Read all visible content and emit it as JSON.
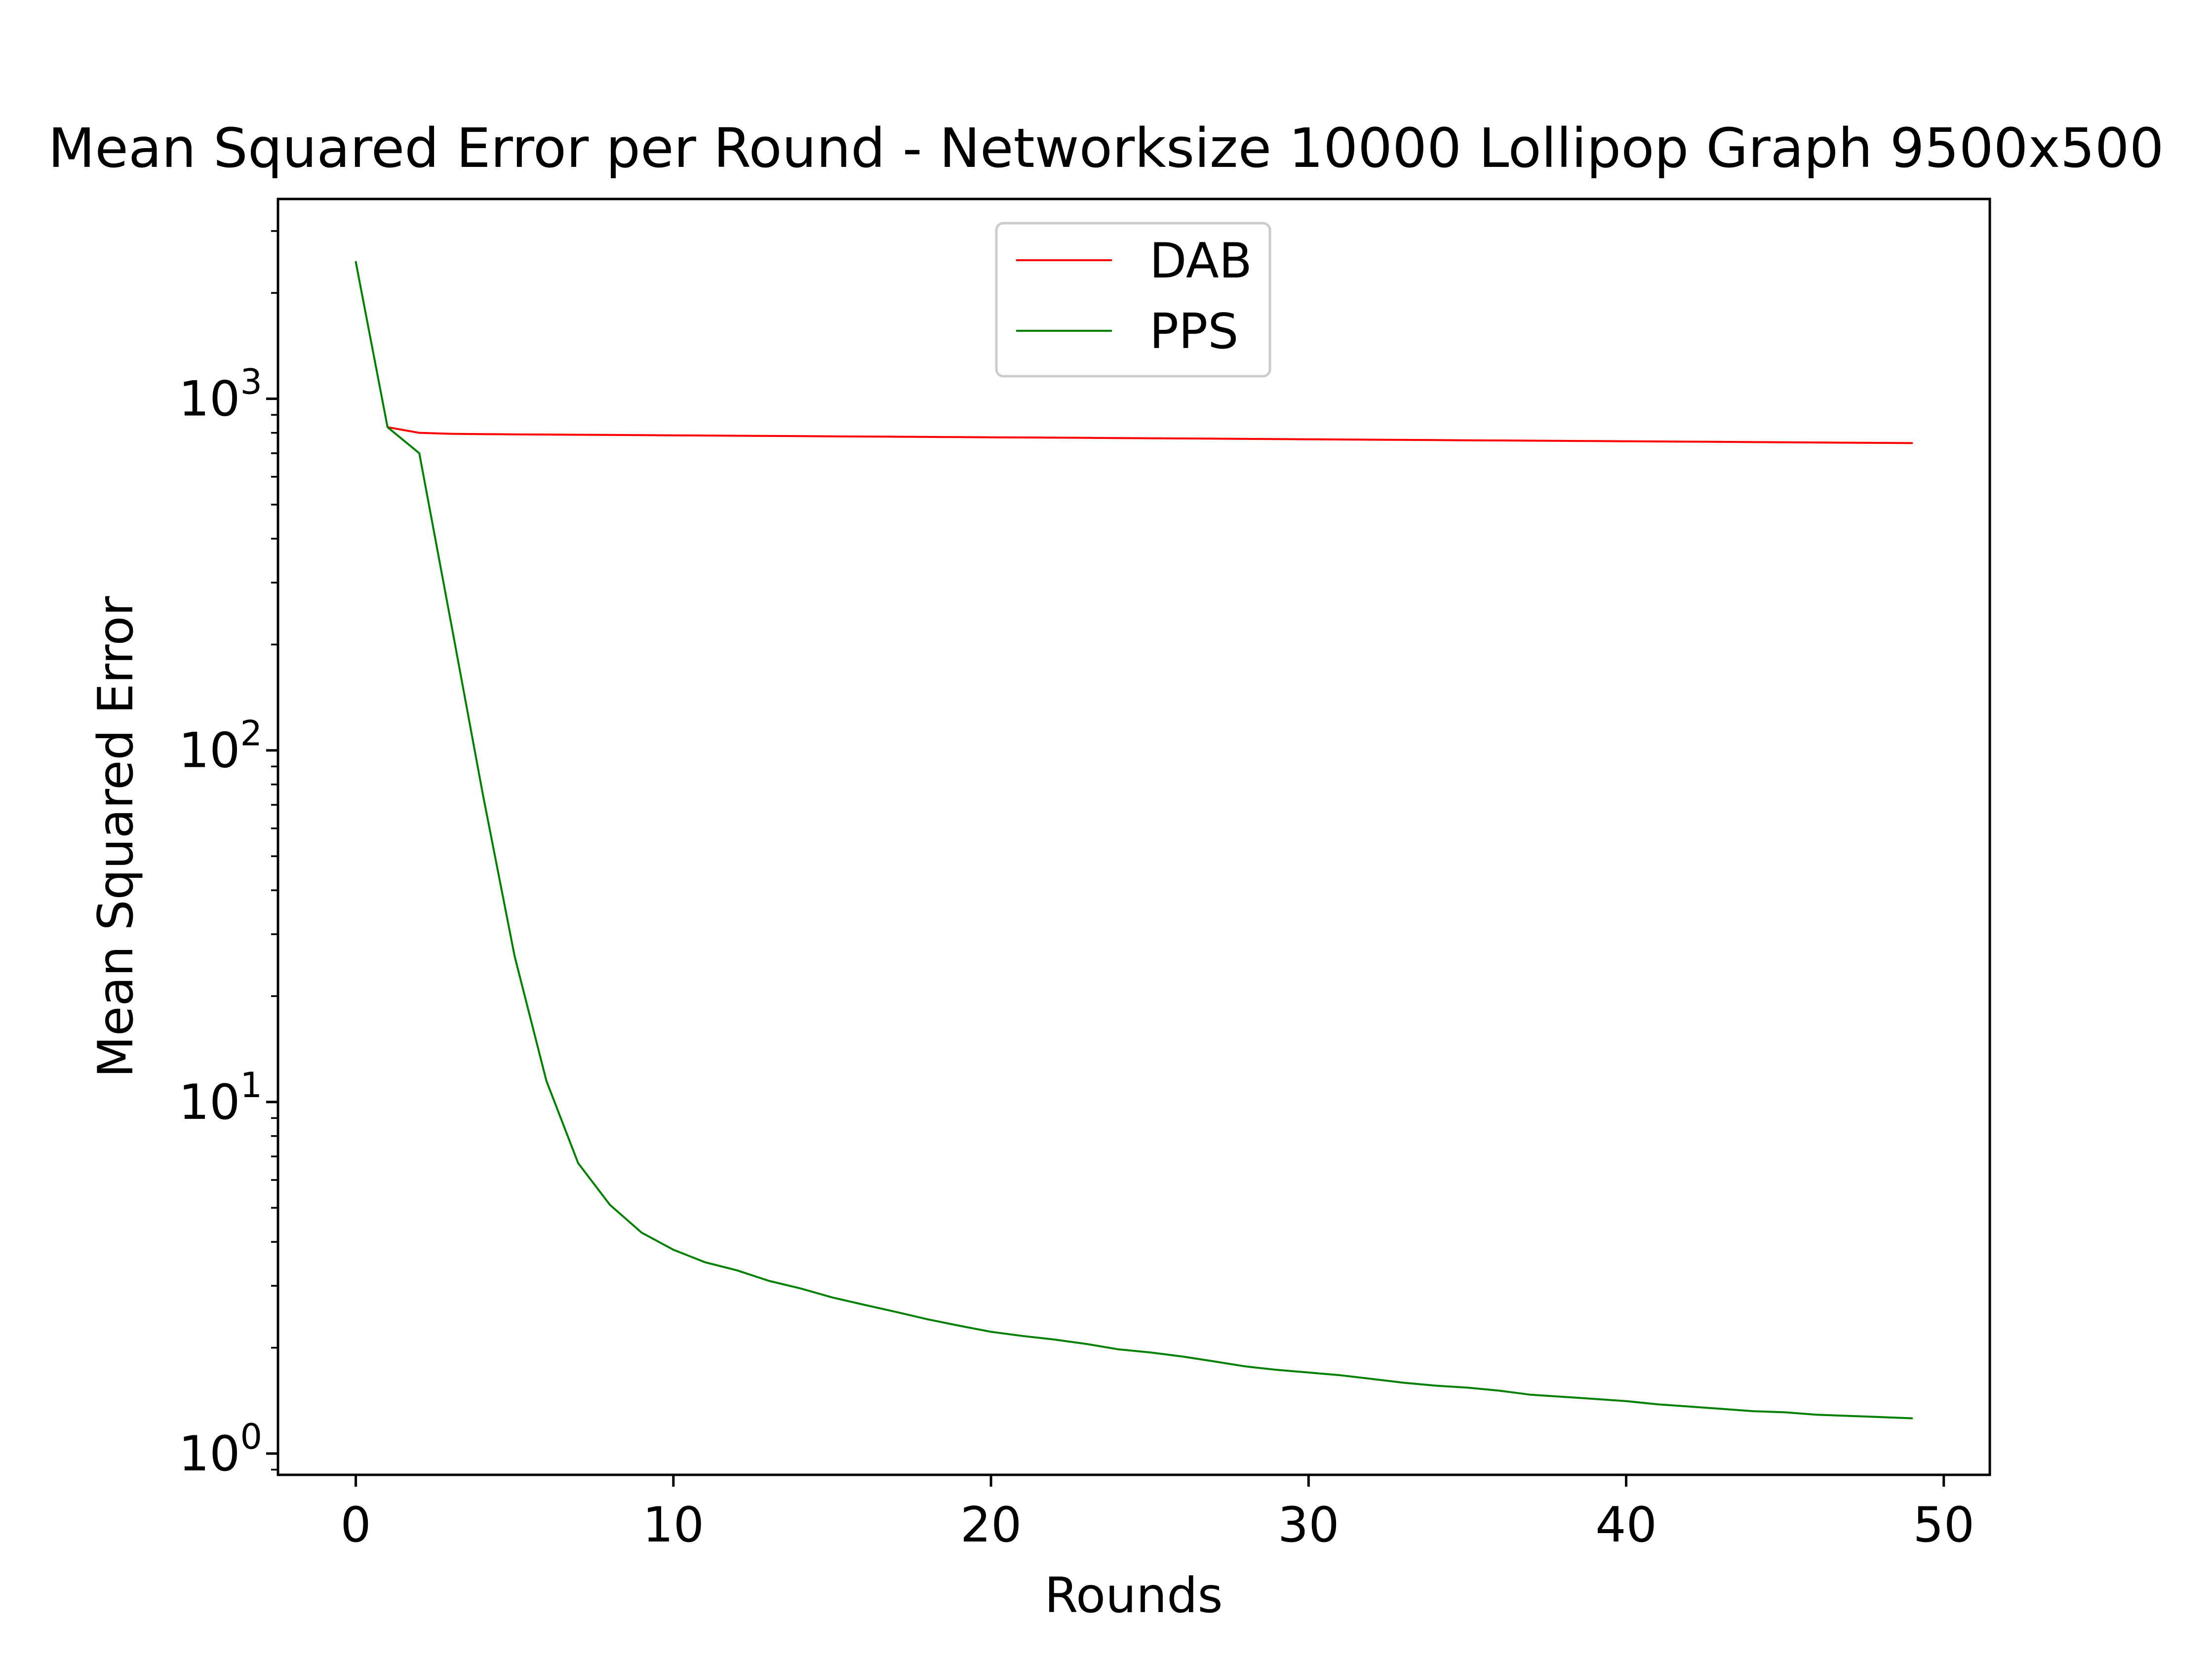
{
  "chart_data": {
    "type": "line",
    "title": "Mean Squared Error per Round - Networksize 10000 Lollipop Graph 9500x500",
    "xlabel": "Rounds",
    "ylabel": "Mean Squared Error",
    "xlim": [
      -2.45,
      51.45
    ],
    "ylim": [
      0.87,
      3700
    ],
    "yscale": "log",
    "x_ticks": [
      0,
      10,
      20,
      30,
      40,
      50
    ],
    "y_ticks": [
      {
        "value": 1,
        "base": "10",
        "exp": "0"
      },
      {
        "value": 10,
        "base": "10",
        "exp": "1"
      },
      {
        "value": 100,
        "base": "10",
        "exp": "2"
      },
      {
        "value": 1000,
        "base": "10",
        "exp": "3"
      }
    ],
    "grid": false,
    "legend": {
      "position": "top-center"
    },
    "x": [
      0,
      1,
      2,
      3,
      4,
      5,
      6,
      7,
      8,
      9,
      10,
      11,
      12,
      13,
      14,
      15,
      16,
      17,
      18,
      19,
      20,
      21,
      22,
      23,
      24,
      25,
      26,
      27,
      28,
      29,
      30,
      31,
      32,
      33,
      34,
      35,
      36,
      37,
      38,
      39,
      40,
      41,
      42,
      43,
      44,
      45,
      46,
      47,
      48,
      49
    ],
    "series": [
      {
        "name": "DAB",
        "color": "#ff0000",
        "x": [
          1,
          2,
          3,
          4,
          5,
          6,
          7,
          8,
          9,
          10,
          11,
          12,
          13,
          14,
          15,
          16,
          17,
          18,
          19,
          20,
          21,
          22,
          23,
          24,
          25,
          26,
          27,
          28,
          29,
          30,
          31,
          32,
          33,
          34,
          35,
          36,
          37,
          38,
          39,
          40,
          41,
          42,
          43,
          44,
          45,
          46,
          47,
          48,
          49
        ],
        "values": [
          830,
          800,
          795,
          793,
          792,
          791,
          790,
          789,
          788,
          787,
          786,
          785,
          784,
          783,
          782,
          781,
          780,
          779,
          778,
          777,
          776,
          775,
          774,
          773,
          772,
          771,
          770,
          769,
          768,
          767,
          766,
          765,
          764,
          763,
          762,
          761,
          760,
          759,
          758,
          757,
          756,
          755,
          754,
          753,
          752,
          751,
          750,
          749,
          748
        ]
      },
      {
        "name": "PPS",
        "color": "#008000",
        "x": [
          0,
          1,
          2,
          3,
          4,
          5,
          6,
          7,
          8,
          9,
          10,
          11,
          12,
          13,
          14,
          15,
          16,
          17,
          18,
          19,
          20,
          21,
          22,
          23,
          24,
          25,
          26,
          27,
          28,
          29,
          30,
          31,
          32,
          33,
          34,
          35,
          36,
          37,
          38,
          39,
          40,
          41,
          42,
          43,
          44,
          45,
          46,
          47,
          48,
          49
        ],
        "values": [
          2450,
          830,
          700,
          230,
          75,
          26,
          11.5,
          6.7,
          5.1,
          4.25,
          3.8,
          3.5,
          3.32,
          3.1,
          2.95,
          2.78,
          2.65,
          2.53,
          2.41,
          2.31,
          2.22,
          2.16,
          2.11,
          2.05,
          1.98,
          1.94,
          1.89,
          1.83,
          1.77,
          1.73,
          1.7,
          1.67,
          1.63,
          1.59,
          1.56,
          1.54,
          1.51,
          1.47,
          1.45,
          1.43,
          1.41,
          1.38,
          1.36,
          1.34,
          1.32,
          1.31,
          1.29,
          1.28,
          1.27,
          1.26
        ]
      }
    ]
  }
}
